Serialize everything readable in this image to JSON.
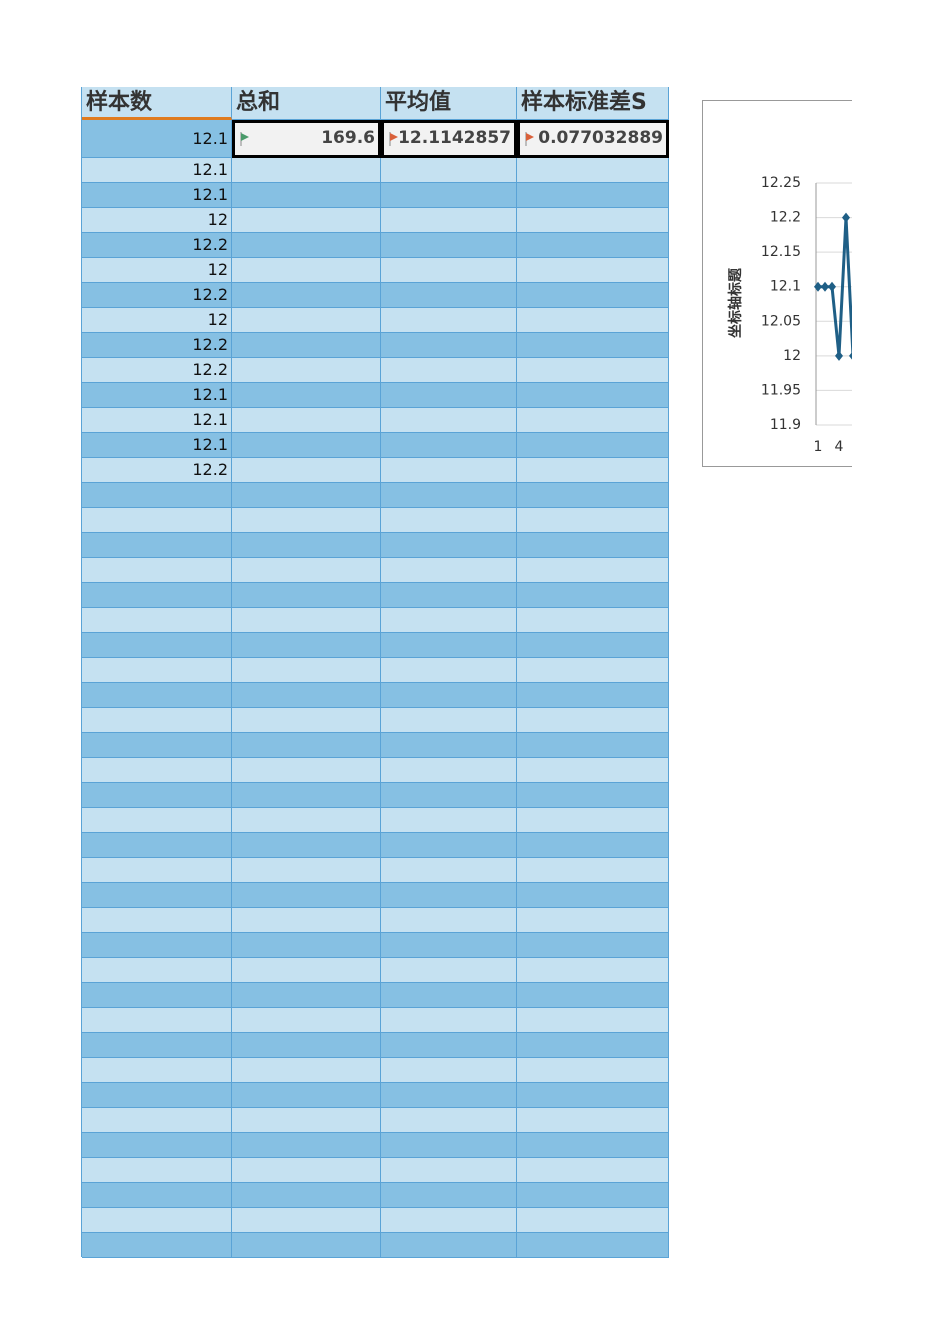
{
  "table": {
    "header": [
      "样本数",
      "总和",
      "平均值",
      "样本标准差S"
    ],
    "samples": [
      12.1,
      12.1,
      12.1,
      12,
      12.2,
      12,
      12.2,
      12,
      12.2,
      12.2,
      12.1,
      12.1,
      12.1,
      12.2
    ],
    "sum": 169.6,
    "mean": 12.1142857,
    "std": 0.077032889
  },
  "chart_data": {
    "type": "line",
    "y_axis_title": "坐标轴标题",
    "x": [
      1,
      2,
      3,
      4,
      5,
      6
    ],
    "xticks": [
      1,
      4
    ],
    "series": [
      {
        "color": "#1f5f86",
        "values": [
          12.1,
          12.1,
          12.1,
          12,
          12.2,
          12
        ]
      }
    ],
    "ylim": [
      11.9,
      12.25
    ],
    "yticks": [
      11.9,
      11.95,
      12,
      12.05,
      12.1,
      12.15,
      12.2,
      12.25
    ],
    "grid": true
  }
}
